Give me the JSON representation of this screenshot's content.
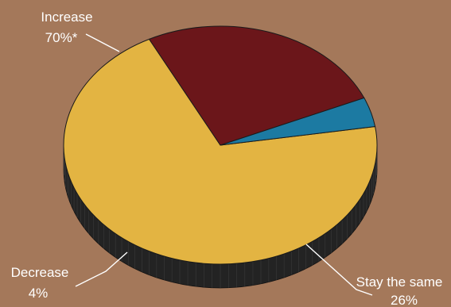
{
  "chart_data": {
    "type": "pie",
    "style": "3d",
    "background": "#a4785a",
    "slices": [
      {
        "label": "Increase",
        "value_label": "70%*",
        "value": 70,
        "color": "#e3b442"
      },
      {
        "label": "Stay the same",
        "value_label": "26%",
        "value": 26,
        "color": "#6b161a"
      },
      {
        "label": "Decrease",
        "value_label": "4%",
        "value": 4,
        "color": "#1c7aa2"
      }
    ],
    "side_color": "#232323"
  }
}
